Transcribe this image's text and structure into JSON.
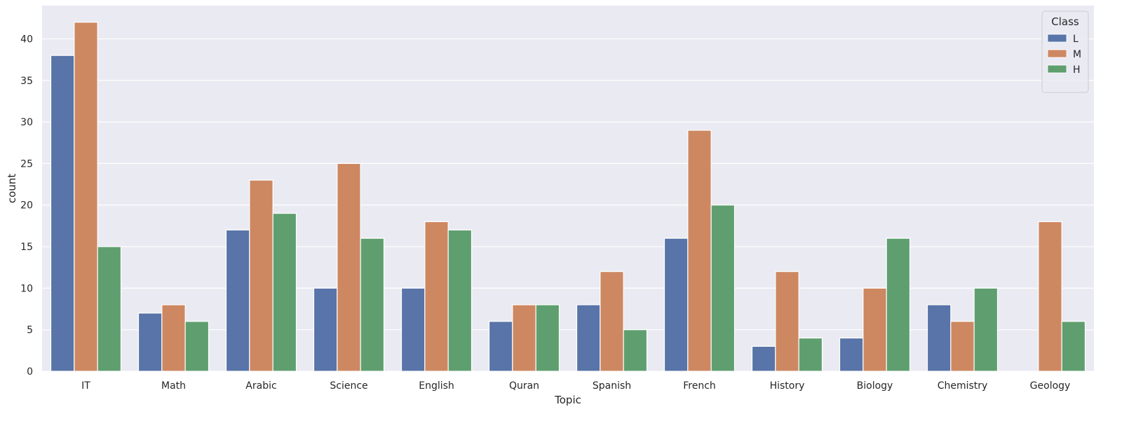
{
  "chart_data": {
    "type": "bar",
    "title": "",
    "xlabel": "Topic",
    "ylabel": "count",
    "ylim": [
      0,
      44
    ],
    "yticks": [
      0,
      5,
      10,
      15,
      20,
      25,
      30,
      35,
      40
    ],
    "grid": true,
    "categories": [
      "IT",
      "Math",
      "Arabic",
      "Science",
      "English",
      "Quran",
      "Spanish",
      "French",
      "History",
      "Biology",
      "Chemistry",
      "Geology"
    ],
    "series": [
      {
        "name": "L",
        "color": "#5874a8",
        "values": [
          38,
          7,
          17,
          10,
          10,
          6,
          8,
          16,
          3,
          4,
          8,
          0
        ]
      },
      {
        "name": "M",
        "color": "#cd8862",
        "values": [
          42,
          8,
          23,
          25,
          18,
          8,
          12,
          29,
          12,
          10,
          6,
          18
        ]
      },
      {
        "name": "H",
        "color": "#5f9f6f",
        "values": [
          15,
          6,
          19,
          16,
          17,
          8,
          5,
          20,
          4,
          16,
          10,
          6
        ]
      }
    ],
    "legend": {
      "title": "Class",
      "position": "top-right"
    },
    "colors": {
      "plot_background": "#eaeaf2",
      "grid": "#ffffff",
      "bar_edge": "#ffffff"
    }
  }
}
